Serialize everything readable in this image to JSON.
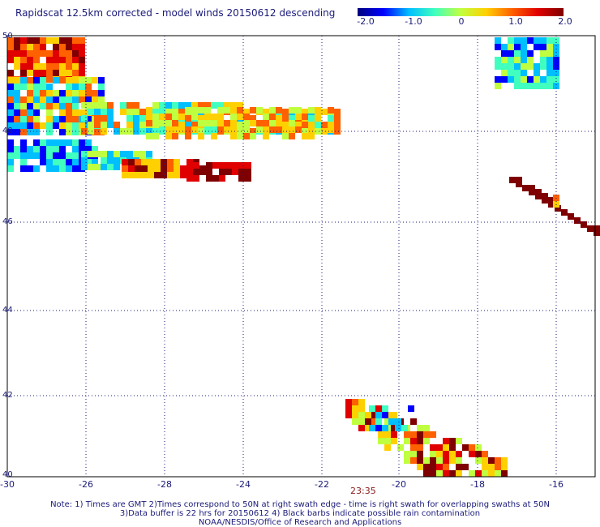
{
  "title": "Rapidscat 12.5km corrected - model winds 20150612 descending",
  "colorbar": {
    "labels": [
      "-2.0",
      "-1.0",
      "0",
      "1.0",
      "2.0"
    ],
    "min": -2.0,
    "max": 2.0,
    "colors": [
      "#00007f",
      "#0000ff",
      "#00bfff",
      "#40ffbf",
      "#c0ff40",
      "#ffd000",
      "#ff6000",
      "#e00000",
      "#7f0000"
    ]
  },
  "map": {
    "lon_ticks": [
      "-30",
      "-26",
      "-28",
      "-24",
      "-22",
      "-20",
      "-18",
      "-16"
    ],
    "lat_ticks": [
      "50",
      "48",
      "46",
      "44",
      "42",
      "40"
    ],
    "lon_range": [
      -30,
      -15
    ],
    "lat_range": [
      40,
      50
    ],
    "time_label": "23:35"
  },
  "notes": [
    "Note: 1) Times are GMT 2)Times correspond to 50N at right swath edge - time is right swath for overlapping swaths at 50N",
    "3)Data buffer is 22 hrs for 20150612 4) Black barbs indicate possible rain contamination",
    "NOAA/NESDIS/Office of Research and Applications"
  ]
}
